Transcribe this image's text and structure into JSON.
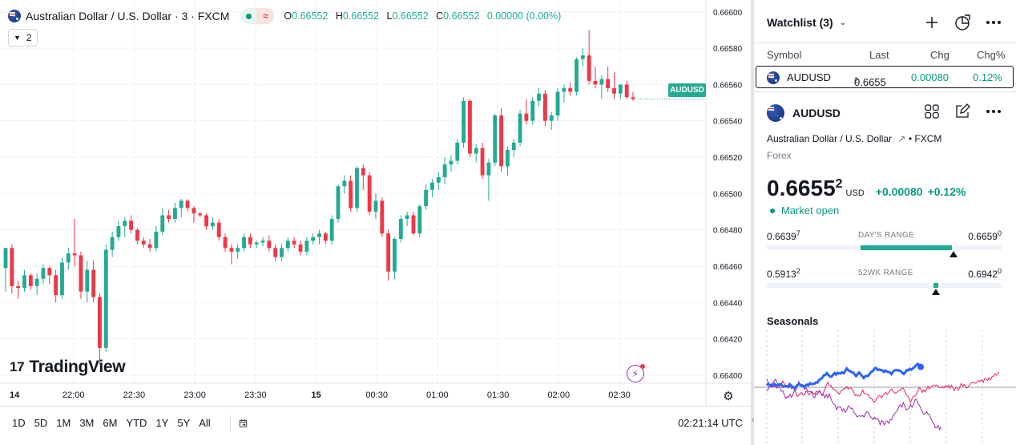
{
  "symbol": {
    "title": "Australian Dollar / U.S. Dollar · 3 · FXCM",
    "ohlc": [
      {
        "key": "O",
        "value": "0.66552"
      },
      {
        "key": "H",
        "value": "0.66552"
      },
      {
        "key": "L",
        "value": "0.66552"
      },
      {
        "key": "C",
        "value": "0.66552"
      }
    ],
    "change": "0.00000 (0.00%)",
    "indicator_count": "2"
  },
  "chart_data": {
    "type": "candlestick",
    "series_name": "AUDUSD",
    "price_label": "AUDUSD",
    "ylim": [
      0.66392,
      0.66603
    ],
    "y_ticks": [
      "0.66600",
      "0.66580",
      "0.66560",
      "0.66540",
      "0.66520",
      "0.66500",
      "0.66480",
      "0.66460",
      "0.66440",
      "0.66420",
      "0.66400"
    ],
    "x_ticks": [
      "14",
      "22:00",
      "22:30",
      "23:00",
      "23:30",
      "15",
      "00:30",
      "01:00",
      "01:30",
      "02:00",
      "02:30"
    ],
    "candles": [
      [
        0.66459,
        0.6647,
        0.66446,
        0.6647
      ],
      [
        0.6647,
        0.66472,
        0.66445,
        0.66449
      ],
      [
        0.66449,
        0.66452,
        0.66442,
        0.66448
      ],
      [
        0.66448,
        0.66458,
        0.66446,
        0.66455
      ],
      [
        0.66455,
        0.66456,
        0.66447,
        0.66449
      ],
      [
        0.66449,
        0.66456,
        0.66444,
        0.66453
      ],
      [
        0.66453,
        0.66461,
        0.6645,
        0.66459
      ],
      [
        0.66459,
        0.6646,
        0.6645,
        0.66455
      ],
      [
        0.66455,
        0.66458,
        0.6644,
        0.66444
      ],
      [
        0.66444,
        0.66465,
        0.66442,
        0.66462
      ],
      [
        0.66462,
        0.6647,
        0.66458,
        0.66467
      ],
      [
        0.66467,
        0.66486,
        0.6646,
        0.66466
      ],
      [
        0.66466,
        0.66468,
        0.66442,
        0.66446
      ],
      [
        0.66446,
        0.66463,
        0.6644,
        0.66458
      ],
      [
        0.66458,
        0.66463,
        0.6644,
        0.66443
      ],
      [
        0.66443,
        0.66445,
        0.66406,
        0.66415
      ],
      [
        0.66415,
        0.66472,
        0.66413,
        0.66469
      ],
      [
        0.66469,
        0.66479,
        0.66465,
        0.66476
      ],
      [
        0.66476,
        0.66485,
        0.66474,
        0.66482
      ],
      [
        0.66482,
        0.66487,
        0.66476,
        0.66485
      ],
      [
        0.66485,
        0.66488,
        0.66478,
        0.6648
      ],
      [
        0.6648,
        0.66481,
        0.66472,
        0.66474
      ],
      [
        0.66474,
        0.66476,
        0.6647,
        0.66472
      ],
      [
        0.66472,
        0.66475,
        0.66468,
        0.6647
      ],
      [
        0.6647,
        0.66482,
        0.66468,
        0.66479
      ],
      [
        0.66479,
        0.66492,
        0.66477,
        0.66488
      ],
      [
        0.66488,
        0.66491,
        0.66484,
        0.66486
      ],
      [
        0.66486,
        0.66495,
        0.66484,
        0.66492
      ],
      [
        0.66492,
        0.66497,
        0.66487,
        0.66496
      ],
      [
        0.66496,
        0.66497,
        0.6649,
        0.66492
      ],
      [
        0.66492,
        0.66493,
        0.66484,
        0.66489
      ],
      [
        0.66489,
        0.6649,
        0.66487,
        0.66488
      ],
      [
        0.66488,
        0.66489,
        0.6648,
        0.66482
      ],
      [
        0.66482,
        0.66487,
        0.6648,
        0.66484
      ],
      [
        0.66484,
        0.66486,
        0.66474,
        0.66476
      ],
      [
        0.66476,
        0.66478,
        0.66468,
        0.6647
      ],
      [
        0.6647,
        0.66472,
        0.66461,
        0.66468
      ],
      [
        0.66468,
        0.66472,
        0.66464,
        0.6647
      ],
      [
        0.6647,
        0.66478,
        0.66468,
        0.66476
      ],
      [
        0.66476,
        0.66478,
        0.6647,
        0.66472
      ],
      [
        0.66472,
        0.66474,
        0.6647,
        0.66473
      ],
      [
        0.66473,
        0.66476,
        0.66471,
        0.66474
      ],
      [
        0.66474,
        0.66477,
        0.66468,
        0.6647
      ],
      [
        0.6647,
        0.66472,
        0.66463,
        0.66465
      ],
      [
        0.66465,
        0.66472,
        0.66463,
        0.6647
      ],
      [
        0.6647,
        0.66476,
        0.66468,
        0.66474
      ],
      [
        0.66474,
        0.66476,
        0.6647,
        0.66472
      ],
      [
        0.66472,
        0.66474,
        0.66466,
        0.66468
      ],
      [
        0.66468,
        0.66476,
        0.66466,
        0.66474
      ],
      [
        0.66474,
        0.66478,
        0.66472,
        0.66476
      ],
      [
        0.66476,
        0.6648,
        0.66472,
        0.66478
      ],
      [
        0.66478,
        0.66479,
        0.66472,
        0.66474
      ],
      [
        0.66474,
        0.66488,
        0.66472,
        0.66486
      ],
      [
        0.66486,
        0.66505,
        0.66484,
        0.66504
      ],
      [
        0.66504,
        0.6651,
        0.665,
        0.66507
      ],
      [
        0.66507,
        0.6651,
        0.6649,
        0.66492
      ],
      [
        0.66492,
        0.66515,
        0.6649,
        0.66514
      ],
      [
        0.66514,
        0.66516,
        0.66502,
        0.6651
      ],
      [
        0.6651,
        0.66512,
        0.66488,
        0.6649
      ],
      [
        0.6649,
        0.665,
        0.66486,
        0.66496
      ],
      [
        0.66496,
        0.66498,
        0.66476,
        0.66478
      ],
      [
        0.66478,
        0.6648,
        0.66452,
        0.66457
      ],
      [
        0.66457,
        0.66476,
        0.66453,
        0.66475
      ],
      [
        0.66475,
        0.66488,
        0.66473,
        0.66486
      ],
      [
        0.66486,
        0.6649,
        0.66482,
        0.66488
      ],
      [
        0.66488,
        0.6649,
        0.66477,
        0.66478
      ],
      [
        0.66478,
        0.66494,
        0.66476,
        0.66493
      ],
      [
        0.66493,
        0.66505,
        0.66491,
        0.66502
      ],
      [
        0.66502,
        0.66508,
        0.66498,
        0.66506
      ],
      [
        0.66506,
        0.66512,
        0.66502,
        0.66509
      ],
      [
        0.66509,
        0.6652,
        0.66505,
        0.66516
      ],
      [
        0.66516,
        0.66521,
        0.66512,
        0.66518
      ],
      [
        0.66518,
        0.6653,
        0.66516,
        0.66528
      ],
      [
        0.66528,
        0.66553,
        0.66525,
        0.66551
      ],
      [
        0.66551,
        0.66552,
        0.6652,
        0.66522
      ],
      [
        0.66522,
        0.66527,
        0.66517,
        0.66525
      ],
      [
        0.66525,
        0.66528,
        0.66508,
        0.6651
      ],
      [
        0.6651,
        0.66519,
        0.66496,
        0.66517
      ],
      [
        0.66517,
        0.66544,
        0.66515,
        0.66543
      ],
      [
        0.66543,
        0.66547,
        0.66512,
        0.66515
      ],
      [
        0.66515,
        0.66526,
        0.6651,
        0.66524
      ],
      [
        0.66524,
        0.6653,
        0.6652,
        0.66528
      ],
      [
        0.66528,
        0.66546,
        0.66526,
        0.66544
      ],
      [
        0.66544,
        0.66552,
        0.66538,
        0.6654
      ],
      [
        0.6654,
        0.66553,
        0.66538,
        0.66551
      ],
      [
        0.66551,
        0.66558,
        0.66548,
        0.66555
      ],
      [
        0.66555,
        0.66557,
        0.66537,
        0.6654
      ],
      [
        0.6654,
        0.66545,
        0.66535,
        0.66543
      ],
      [
        0.66543,
        0.66558,
        0.6654,
        0.66556
      ],
      [
        0.66556,
        0.6656,
        0.6655,
        0.66558
      ],
      [
        0.66558,
        0.66561,
        0.66554,
        0.66556
      ],
      [
        0.66556,
        0.66575,
        0.66554,
        0.66574
      ],
      [
        0.66574,
        0.6658,
        0.6657,
        0.66576
      ],
      [
        0.66576,
        0.6659,
        0.6656,
        0.66562
      ],
      [
        0.66562,
        0.6657,
        0.66558,
        0.6656
      ],
      [
        0.6656,
        0.66565,
        0.66552,
        0.66563
      ],
      [
        0.66563,
        0.6657,
        0.66556,
        0.66558
      ],
      [
        0.66558,
        0.66567,
        0.66552,
        0.66555
      ],
      [
        0.66555,
        0.6656,
        0.66552,
        0.6656
      ],
      [
        0.6656,
        0.66562,
        0.66552,
        0.66553
      ],
      [
        0.66553,
        0.66556,
        0.66551,
        0.66552
      ]
    ],
    "colors": {
      "up": "#22ab94",
      "down": "#f23645",
      "grid": "#f0f3fa",
      "axis_text": "#131722"
    }
  },
  "branding": {
    "logo_text": "TradingView"
  },
  "bottom_bar": {
    "ranges": [
      "1D",
      "5D",
      "1M",
      "3M",
      "6M",
      "YTD",
      "1Y",
      "5Y",
      "All"
    ],
    "clock": "02:21:14 UTC"
  },
  "watchlist": {
    "title": "Watchlist (3)",
    "columns": [
      "Symbol",
      "Last",
      "Chg",
      "Chg%"
    ],
    "rows": [
      {
        "symbol": "AUDUSD",
        "last_main": "0.6655",
        "last_sup": "2",
        "chg": "0.00080",
        "chg_pct": "0.12%"
      }
    ]
  },
  "details": {
    "symbol": "AUDUSD",
    "name": "Australian Dollar / U.S. Dollar",
    "exchange": "FXCM",
    "type": "Forex",
    "price_main": "0.6655",
    "price_sup": "2",
    "currency": "USD",
    "change": "+0.00080",
    "change_pct": "+0.12%",
    "market_status": "Market open",
    "days_range": {
      "label": "DAY'S RANGE",
      "low_main": "0.6639",
      "low_sup": "7",
      "high_main": "0.6659",
      "high_sup": "0",
      "position": 0.79
    },
    "week52_range": {
      "label": "52WK RANGE",
      "low_main": "0.5913",
      "low_sup": "2",
      "high_main": "0.6942",
      "high_sup": "0",
      "position": 0.72
    }
  },
  "seasonals": {
    "title": "Seasonals",
    "colors": [
      "#2962ff",
      "#9c27b0",
      "#e91e63"
    ]
  }
}
